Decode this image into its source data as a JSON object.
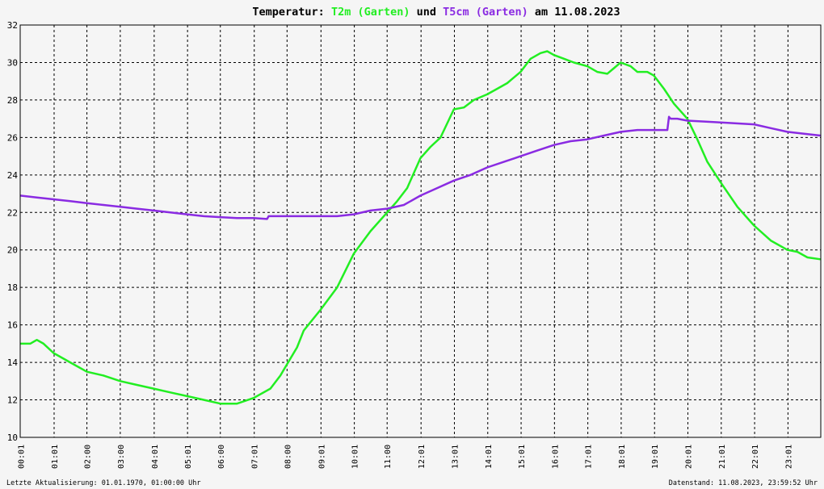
{
  "title": {
    "prefix": "Temperatur: ",
    "series1": "T2m (Garten)",
    "middle": " und ",
    "series2": "T5cm (Garten)",
    "suffix": " am 11.08.2023"
  },
  "footer": {
    "left": "Letzte Aktualisierung: 01.01.1970, 01:00:00 Uhr",
    "right": "Datenstand: 11.08.2023, 23:59:52 Uhr"
  },
  "colors": {
    "t2m": "#22ee22",
    "t5cm": "#8a2be2",
    "grid": "#000000",
    "background": "#f5f5f5"
  },
  "chart_data": {
    "type": "line",
    "title": "Temperatur: T2m (Garten) und T5cm (Garten) am 11.08.2023",
    "xlabel": "",
    "ylabel": "",
    "xlim": [
      0,
      24
    ],
    "ylim": [
      10,
      32
    ],
    "grid": true,
    "y_ticks": [
      10,
      12,
      14,
      16,
      18,
      20,
      22,
      24,
      26,
      28,
      30,
      32
    ],
    "x_tick_labels": [
      "00:01",
      "01:01",
      "02:00",
      "03:00",
      "04:01",
      "05:01",
      "06:00",
      "07:01",
      "08:00",
      "09:01",
      "10:01",
      "11:00",
      "12:01",
      "13:01",
      "14:01",
      "15:01",
      "16:01",
      "17:01",
      "18:01",
      "19:01",
      "20:01",
      "21:01",
      "22:01",
      "23:01"
    ],
    "x_tick_hours": [
      0.0167,
      1.0167,
      2.0,
      3.0,
      4.0167,
      5.0167,
      6.0,
      7.0167,
      8.0,
      9.0167,
      10.0167,
      11.0,
      12.0167,
      13.0167,
      14.0167,
      15.0167,
      16.0167,
      17.0167,
      18.0167,
      19.0167,
      20.0167,
      21.0167,
      22.0167,
      23.0167
    ],
    "series": [
      {
        "name": "T2m (Garten)",
        "x": [
          0,
          0.3,
          0.5,
          0.7,
          1.0,
          1.5,
          2.0,
          2.5,
          3.0,
          3.5,
          4.0,
          4.5,
          5.0,
          5.5,
          6.0,
          6.5,
          7.0,
          7.5,
          7.8,
          8.0,
          8.3,
          8.5,
          9.0,
          9.5,
          10.0,
          10.5,
          11.0,
          11.3,
          11.6,
          12.0,
          12.3,
          12.6,
          13.0,
          13.3,
          13.6,
          14.0,
          14.3,
          14.6,
          15.0,
          15.3,
          15.6,
          15.8,
          16.0,
          16.3,
          16.6,
          17.0,
          17.3,
          17.6,
          18.0,
          18.3,
          18.5,
          18.8,
          19.0,
          19.3,
          19.6,
          20.0,
          20.3,
          20.6,
          21.0,
          21.5,
          22.0,
          22.5,
          23.0,
          23.3,
          23.6,
          23.99
        ],
        "y": [
          15.0,
          15.0,
          15.2,
          15.0,
          14.5,
          14.0,
          13.5,
          13.3,
          13.0,
          12.8,
          12.6,
          12.4,
          12.2,
          12.0,
          11.8,
          11.8,
          12.1,
          12.6,
          13.3,
          13.9,
          14.8,
          15.7,
          16.8,
          18.0,
          19.8,
          21.0,
          22.0,
          22.6,
          23.3,
          24.9,
          25.5,
          26.0,
          27.5,
          27.6,
          28.0,
          28.3,
          28.6,
          28.9,
          29.5,
          30.2,
          30.5,
          30.6,
          30.4,
          30.2,
          30.0,
          29.8,
          29.5,
          29.4,
          30.0,
          29.8,
          29.5,
          29.5,
          29.3,
          28.6,
          27.8,
          27.0,
          25.9,
          24.7,
          23.6,
          22.3,
          21.3,
          20.5,
          20.0,
          19.9,
          19.6,
          19.5
        ]
      },
      {
        "name": "T5cm (Garten)",
        "x": [
          0,
          0.5,
          1.0,
          1.5,
          2.0,
          2.5,
          3.0,
          3.5,
          4.0,
          4.5,
          5.0,
          5.5,
          6.0,
          6.5,
          7.0,
          7.4,
          7.45,
          7.5,
          8.0,
          9.0,
          9.5,
          10.0,
          10.5,
          11.0,
          11.5,
          12.0,
          12.5,
          13.0,
          13.5,
          14.0,
          14.5,
          15.0,
          15.5,
          16.0,
          16.5,
          17.0,
          17.5,
          18.0,
          18.5,
          19.0,
          19.4,
          19.45,
          19.5,
          19.7,
          20.0,
          21.0,
          22.0,
          22.5,
          23.0,
          23.5,
          23.99
        ],
        "y": [
          22.9,
          22.8,
          22.7,
          22.6,
          22.5,
          22.4,
          22.3,
          22.2,
          22.1,
          22.0,
          21.9,
          21.8,
          21.75,
          21.7,
          21.7,
          21.65,
          21.8,
          21.8,
          21.8,
          21.8,
          21.8,
          21.9,
          22.1,
          22.2,
          22.4,
          22.9,
          23.3,
          23.7,
          24.0,
          24.4,
          24.7,
          25.0,
          25.3,
          25.6,
          25.8,
          25.9,
          26.1,
          26.3,
          26.4,
          26.4,
          26.4,
          27.1,
          27.0,
          27.0,
          26.9,
          26.8,
          26.7,
          26.5,
          26.3,
          26.2,
          26.1
        ]
      }
    ]
  }
}
